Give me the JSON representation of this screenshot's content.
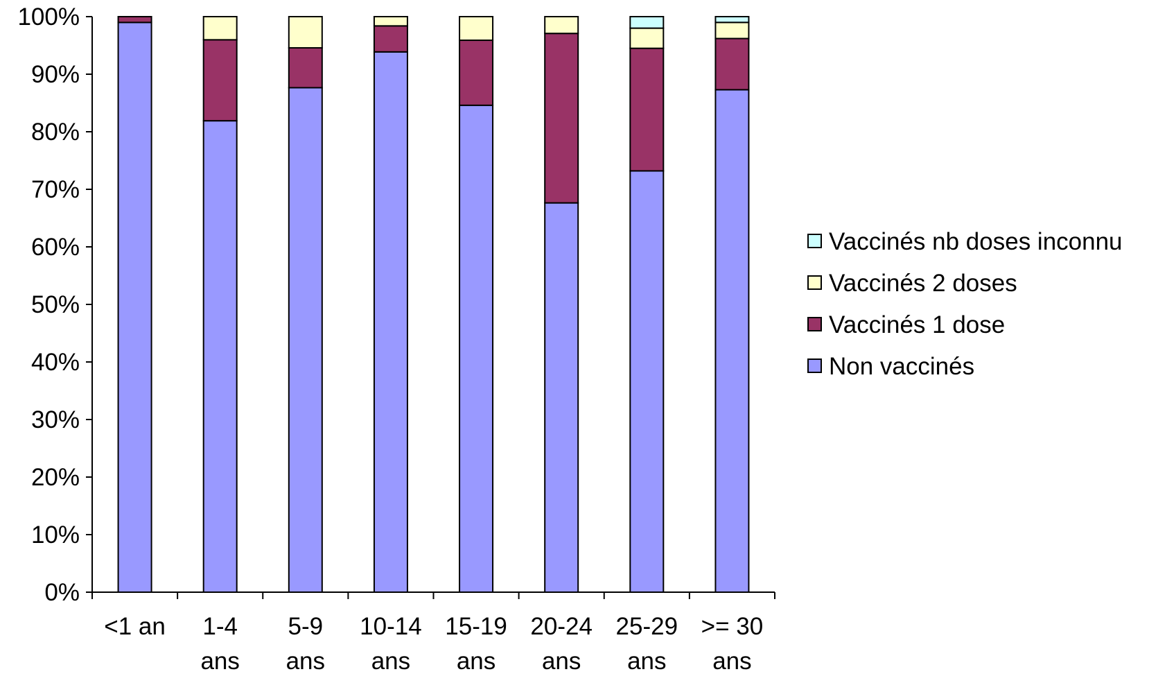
{
  "chart_data": {
    "type": "bar",
    "stacked": true,
    "percent_stacked": true,
    "categories": [
      [
        "<1 an"
      ],
      [
        "1-4",
        "ans"
      ],
      [
        "5-9",
        "ans"
      ],
      [
        "10-14",
        "ans"
      ],
      [
        "15-19",
        "ans"
      ],
      [
        "20-24",
        "ans"
      ],
      [
        "25-29",
        "ans"
      ],
      [
        ">= 30",
        "ans"
      ]
    ],
    "series": [
      {
        "name": "Non vaccinés",
        "color": "#9999FF",
        "values": [
          98.5,
          81.5,
          87.3,
          93.5,
          84.6,
          67.3,
          73.2,
          87.3
        ]
      },
      {
        "name": "Vaccinés 1 dose",
        "color": "#993366",
        "values": [
          1.0,
          14.0,
          6.9,
          4.5,
          11.3,
          29.3,
          21.3,
          8.9
        ]
      },
      {
        "name": "Vaccinés 2 doses",
        "color": "#FFFFCC",
        "values": [
          0.0,
          4.0,
          5.4,
          1.6,
          4.1,
          2.9,
          3.5,
          2.8
        ]
      },
      {
        "name": "Vaccinés nb doses inconnu",
        "color": "#CCFFFF",
        "values": [
          0.0,
          0.0,
          0.0,
          0.0,
          0.0,
          0.0,
          2.0,
          1.0
        ]
      }
    ],
    "ylim": [
      0,
      100
    ],
    "yticks": [
      "0%",
      "10%",
      "20%",
      "30%",
      "40%",
      "50%",
      "60%",
      "70%",
      "80%",
      "90%",
      "100%"
    ],
    "legend_order": [
      "Vaccinés nb doses inconnu",
      "Vaccinés 2 doses",
      "Vaccinés 1 dose",
      "Non vaccinés"
    ],
    "legend_position": "right",
    "grid": false,
    "title": "",
    "xlabel": "",
    "ylabel": ""
  }
}
